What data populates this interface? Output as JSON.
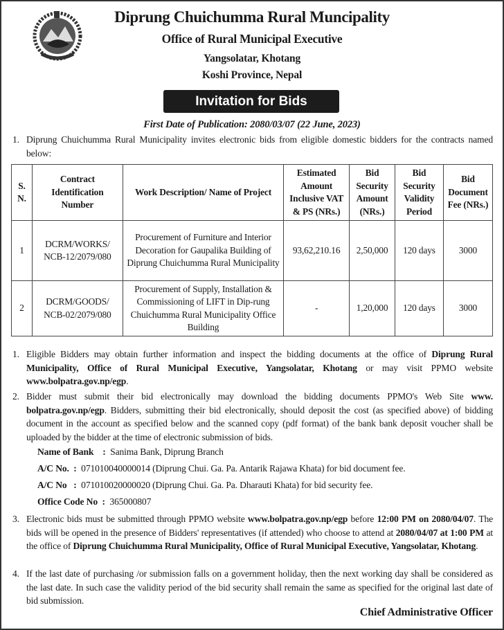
{
  "header": {
    "title": "Diprung Chuichumma Rural Muncipality",
    "office": "Office of Rural Municipal Executive",
    "address": "Yangsolatar, Khotang",
    "province": "Koshi Province, Nepal",
    "logo": "nepal-emblem"
  },
  "banner": "Invitation for Bids",
  "publication": "First Date of Publication: 2080/03/07 (22 June, 2023)",
  "intro": {
    "num": "1.",
    "text": "Diprung Chuichumma Rural Municipality invites electronic bids from eligible domestic bidders for the contracts named below:"
  },
  "table": {
    "headers": [
      "S. N.",
      "Contract Identification Number",
      "Work Description/ Name of Project",
      "Estimated Amount Inclusive VAT & PS (NRs.)",
      "Bid Security Amount (NRs.)",
      "Bid Security Validity Period",
      "Bid Document Fee (NRs.)"
    ],
    "rows": [
      [
        "1",
        "DCRM/WORKS/ NCB-12/2079/080",
        "Procurement of Furniture and Interior Decoration for Gaupalika Building of Diprung Chuichumma Rural Municipality",
        "93,62,210.16",
        "2,50,000",
        "120 days",
        "3000"
      ],
      [
        "2",
        "DCRM/GOODS/ NCB-02/2079/080",
        "Procurement of Supply, Installation & Commissioning of LIFT in Dip-rung Chuichumma Rural Municipality Office Building",
        "-",
        "1,20,000",
        "120 days",
        "3000"
      ]
    ]
  },
  "items": [
    {
      "num": "1.",
      "a": "Eligible Bidders may obtain further information and inspect the bidding documents at the office of ",
      "b": "Diprung Rural Municipality, Office of Rural Municipal Executive, Yangsolatar, Khotang",
      "c": " or may visit PPMO website ",
      "d": "www.bolpatra.gov.np/egp",
      "e": "."
    },
    {
      "num": "2.",
      "a": "Bidder must submit their bid electronically may download the bidding documents PPMO's Web Site ",
      "b": "www. bolpatra.gov.np/egp",
      "c": ". Bidders, submitting their bid electronically, should deposit the cost (as specified above) of bidding document in the account as specified below and the scanned copy (pdf format) of the bank bank deposit voucher shall be uploaded by the bidder at the time of electronic submission of bids."
    },
    {
      "num": "3.",
      "a": "Electronic bids must be submitted through PPMO website ",
      "b": "www.bolpatra.gov.np/egp",
      "c": " before ",
      "d": "12:00 PM on 2080/04/07",
      "e": ". The bids will be opened in the presence of Bidders' representatives (if attended) who choose to attend at ",
      "f": "2080/04/07 at 1:00 PM",
      "g": " at the office of ",
      "h": "Diprung Chuichumma Rural Municipality, Office of Rural Municipal Executive, Yangsolatar, Khotang",
      "i": "."
    },
    {
      "num": "4.",
      "a": "If the last date of purchasing /or submission falls on a government holiday, then the next working day shall be considered as the last date. In such case the validity period of the bid security shall remain the same as specified for the original last date of bid submission."
    }
  ],
  "bank": [
    {
      "label": "Name of Bank",
      "sep": ":",
      "value": "Sanima Bank, Diprung Branch"
    },
    {
      "label": "A/C No.",
      "sep": ":",
      "value": "071010040000014 (Diprung Chui. Ga. Pa. Antarik Rajawa Khata) for bid document fee."
    },
    {
      "label": "A/C No",
      "sep": ":",
      "value": "071010020000020 (Diprung Chui. Ga. Pa. Dharauti Khata) for bid security fee."
    },
    {
      "label": "Office Code No",
      "sep": ":",
      "value": "365000807"
    }
  ],
  "signature": "Chief Administrative Officer"
}
